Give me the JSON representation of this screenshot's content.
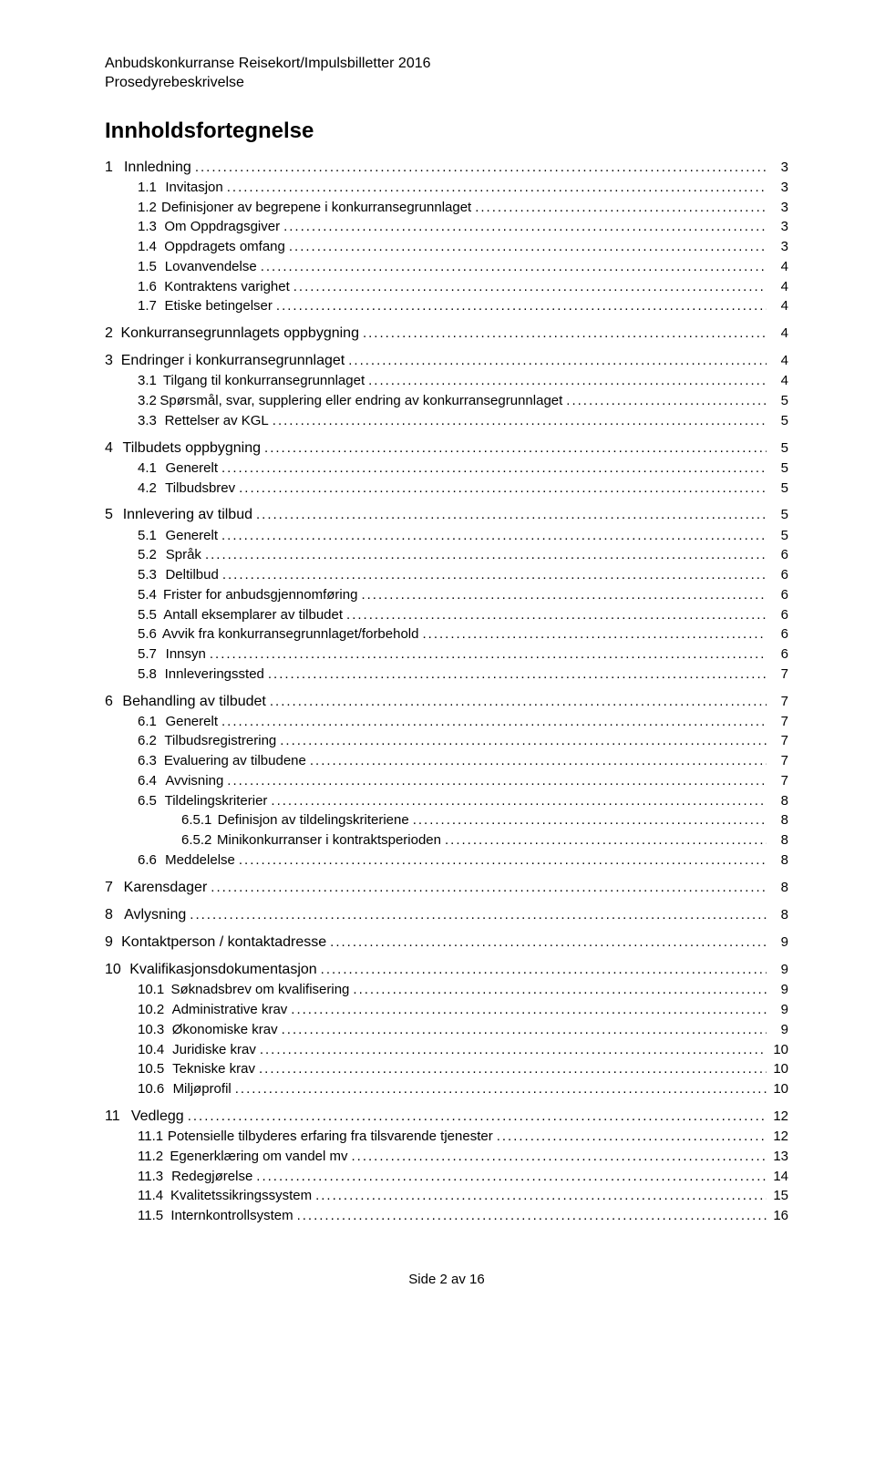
{
  "header": {
    "line1": "Anbudskonkurranse Reisekort/Impulsbilletter 2016",
    "line2": "Prosedyrebeskrivelse"
  },
  "tocTitle": "Innholdsfortegnelse",
  "footer": {
    "prefix": "Side ",
    "current": "2",
    "middle": " av ",
    "total": "16"
  },
  "toc": [
    {
      "level": 1,
      "num": "1",
      "text": "Innledning",
      "page": "3"
    },
    {
      "level": 2,
      "num": "1.1",
      "text": "Invitasjon",
      "page": "3"
    },
    {
      "level": 2,
      "num": "1.2",
      "text": "Definisjoner av begrepene i konkurransegrunnlaget",
      "page": "3"
    },
    {
      "level": 2,
      "num": "1.3",
      "text": "Om Oppdragsgiver",
      "page": "3"
    },
    {
      "level": 2,
      "num": "1.4",
      "text": "Oppdragets omfang",
      "page": "3"
    },
    {
      "level": 2,
      "num": "1.5",
      "text": "Lovanvendelse",
      "page": "4"
    },
    {
      "level": 2,
      "num": "1.6",
      "text": "Kontraktens varighet",
      "page": "4"
    },
    {
      "level": 2,
      "num": "1.7",
      "text": "Etiske betingelser",
      "page": "4"
    },
    {
      "level": 1,
      "num": "2",
      "text": "Konkurransegrunnlagets oppbygning",
      "page": "4"
    },
    {
      "level": 1,
      "num": "3",
      "text": "Endringer i konkurransegrunnlaget",
      "page": "4"
    },
    {
      "level": 2,
      "num": "3.1",
      "text": "Tilgang til konkurransegrunnlaget",
      "page": "4"
    },
    {
      "level": 2,
      "num": "3.2",
      "text": "Spørsmål, svar, supplering eller endring av konkurransegrunnlaget",
      "page": "5"
    },
    {
      "level": 2,
      "num": "3.3",
      "text": "Rettelser av KGL",
      "page": "5"
    },
    {
      "level": 1,
      "num": "4",
      "text": "Tilbudets oppbygning",
      "page": "5"
    },
    {
      "level": 2,
      "num": "4.1",
      "text": "Generelt",
      "page": "5"
    },
    {
      "level": 2,
      "num": "4.2",
      "text": "Tilbudsbrev",
      "page": "5"
    },
    {
      "level": 1,
      "num": "5",
      "text": "Innlevering av tilbud",
      "page": "5"
    },
    {
      "level": 2,
      "num": "5.1",
      "text": "Generelt",
      "page": "5"
    },
    {
      "level": 2,
      "num": "5.2",
      "text": "Språk",
      "page": "6"
    },
    {
      "level": 2,
      "num": "5.3",
      "text": "Deltilbud",
      "page": "6"
    },
    {
      "level": 2,
      "num": "5.4",
      "text": "Frister for anbudsgjennomføring",
      "page": "6"
    },
    {
      "level": 2,
      "num": "5.5",
      "text": "Antall eksemplarer av tilbudet",
      "page": "6"
    },
    {
      "level": 2,
      "num": "5.6",
      "text": "Avvik fra konkurransegrunnlaget/forbehold",
      "page": "6"
    },
    {
      "level": 2,
      "num": "5.7",
      "text": "Innsyn",
      "page": "6"
    },
    {
      "level": 2,
      "num": "5.8",
      "text": "Innleveringssted",
      "page": "7"
    },
    {
      "level": 1,
      "num": "6",
      "text": "Behandling av tilbudet",
      "page": "7"
    },
    {
      "level": 2,
      "num": "6.1",
      "text": "Generelt",
      "page": "7"
    },
    {
      "level": 2,
      "num": "6.2",
      "text": "Tilbudsregistrering",
      "page": "7"
    },
    {
      "level": 2,
      "num": "6.3",
      "text": "Evaluering av tilbudene",
      "page": "7"
    },
    {
      "level": 2,
      "num": "6.4",
      "text": "Avvisning",
      "page": "7"
    },
    {
      "level": 2,
      "num": "6.5",
      "text": "Tildelingskriterier",
      "page": "8"
    },
    {
      "level": 3,
      "num": "6.5.1",
      "text": "Definisjon av tildelingskriteriene",
      "page": "8"
    },
    {
      "level": 3,
      "num": "6.5.2",
      "text": "Minikonkurranser i kontraktsperioden",
      "page": "8"
    },
    {
      "level": 2,
      "num": "6.6",
      "text": "Meddelelse",
      "page": "8"
    },
    {
      "level": 1,
      "num": "7",
      "text": "Karensdager",
      "page": "8"
    },
    {
      "level": 1,
      "num": "8",
      "text": "Avlysning",
      "page": "8"
    },
    {
      "level": 1,
      "num": "9",
      "text": "Kontaktperson / kontaktadresse",
      "page": "9"
    },
    {
      "level": 1,
      "num": "10",
      "text": "Kvalifikasjonsdokumentasjon",
      "page": "9"
    },
    {
      "level": 2,
      "num": "10.1",
      "text": "Søknadsbrev om kvalifisering",
      "page": "9"
    },
    {
      "level": 2,
      "num": "10.2",
      "text": "Administrative krav",
      "page": "9"
    },
    {
      "level": 2,
      "num": "10.3",
      "text": "Økonomiske krav",
      "page": "9"
    },
    {
      "level": 2,
      "num": "10.4",
      "text": "Juridiske krav",
      "page": "10"
    },
    {
      "level": 2,
      "num": "10.5",
      "text": "Tekniske krav",
      "page": "10"
    },
    {
      "level": 2,
      "num": "10.6",
      "text": "Miljøprofil",
      "page": "10"
    },
    {
      "level": 1,
      "num": "11",
      "text": "Vedlegg",
      "page": "12"
    },
    {
      "level": 2,
      "num": "11.1",
      "text": "Potensielle tilbyderes erfaring fra tilsvarende tjenester",
      "page": "12"
    },
    {
      "level": 2,
      "num": "11.2",
      "text": "Egenerklæring om vandel mv",
      "page": "13"
    },
    {
      "level": 2,
      "num": "11.3",
      "text": "Redegjørelse",
      "page": "14"
    },
    {
      "level": 2,
      "num": "11.4",
      "text": "Kvalitetssikringssystem",
      "page": "15"
    },
    {
      "level": 2,
      "num": "11.5",
      "text": "Internkontrollsystem",
      "page": "16"
    }
  ]
}
